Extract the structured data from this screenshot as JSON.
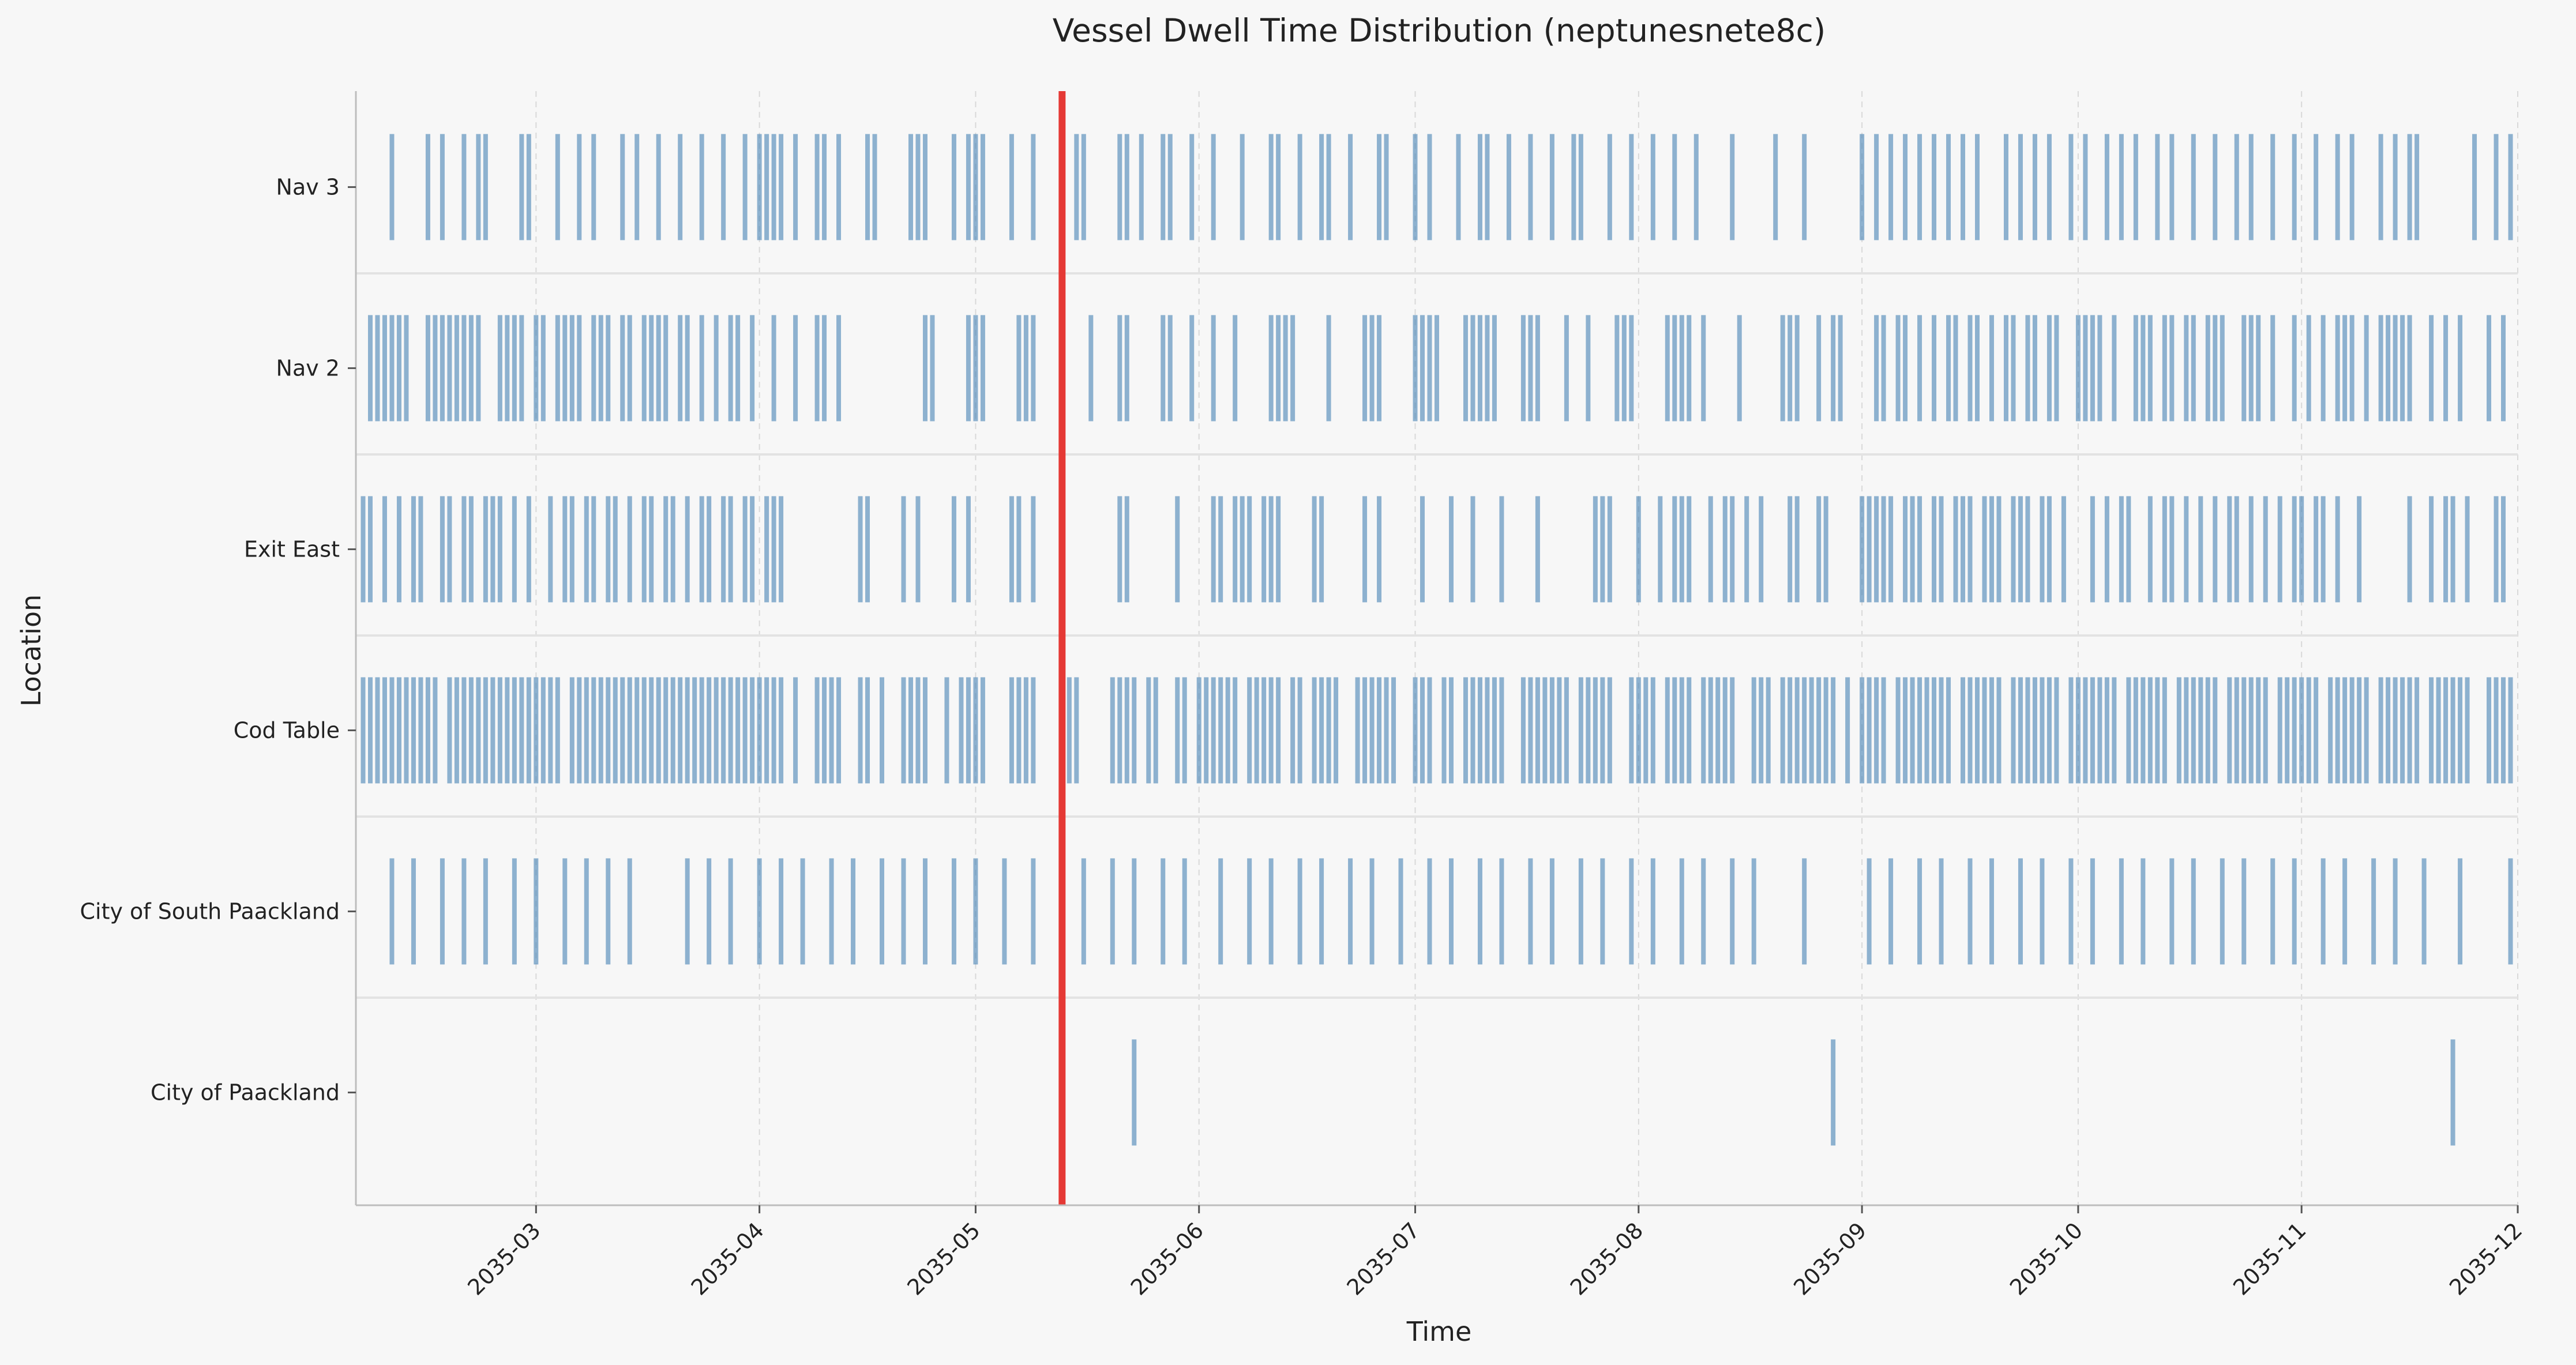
{
  "chart_data": {
    "type": "event-raster",
    "title": "Vessel Dwell Time Distribution (neptunesnete8c)",
    "xlabel": "Time",
    "ylabel": "Location",
    "x_axis": {
      "range": [
        "2035-02-04",
        "2035-12-01"
      ],
      "ticks": [
        "2035-03",
        "2035-04",
        "2035-05",
        "2035-06",
        "2035-07",
        "2035-08",
        "2035-09",
        "2035-10",
        "2035-11",
        "2035-12"
      ],
      "tick_dates": [
        "2035-03-01",
        "2035-04-01",
        "2035-05-01",
        "2035-06-01",
        "2035-07-01",
        "2035-08-01",
        "2035-09-01",
        "2035-10-01",
        "2035-11-01",
        "2035-12-01"
      ],
      "grid": "vertical dashed"
    },
    "categories": [
      "Nav 3",
      "Nav 2",
      "Exit East",
      "Cod Table",
      "City of South Paackland",
      "City of Paackland"
    ],
    "reference_line": {
      "date": "2035-05-13",
      "color": "#e53935"
    },
    "event_color": "#4682b4",
    "series": [
      {
        "category": "Nav 3",
        "event_dates": [
          "2035-02-09",
          "2035-02-14",
          "2035-02-16",
          "2035-02-19",
          "2035-02-21",
          "2035-02-22",
          "2035-02-27",
          "2035-02-28",
          "2035-03-04",
          "2035-03-07",
          "2035-03-09",
          "2035-03-13",
          "2035-03-15",
          "2035-03-18",
          "2035-03-21",
          "2035-03-24",
          "2035-03-27",
          "2035-03-30",
          "2035-04-01",
          "2035-04-02",
          "2035-04-03",
          "2035-04-04",
          "2035-04-06",
          "2035-04-09",
          "2035-04-10",
          "2035-04-12",
          "2035-04-16",
          "2035-04-17",
          "2035-04-22",
          "2035-04-23",
          "2035-04-24",
          "2035-04-28",
          "2035-04-30",
          "2035-05-01",
          "2035-05-02",
          "2035-05-06",
          "2035-05-09",
          "2035-05-15",
          "2035-05-16",
          "2035-05-21",
          "2035-05-22",
          "2035-05-24",
          "2035-05-27",
          "2035-05-28",
          "2035-05-31",
          "2035-06-03",
          "2035-06-07",
          "2035-06-11",
          "2035-06-12",
          "2035-06-15",
          "2035-06-18",
          "2035-06-19",
          "2035-06-22",
          "2035-06-26",
          "2035-06-27",
          "2035-07-01",
          "2035-07-03",
          "2035-07-07",
          "2035-07-10",
          "2035-07-11",
          "2035-07-14",
          "2035-07-17",
          "2035-07-20",
          "2035-07-23",
          "2035-07-24",
          "2035-07-28",
          "2035-07-31",
          "2035-08-03",
          "2035-08-06",
          "2035-08-09",
          "2035-08-14",
          "2035-08-20",
          "2035-08-24",
          "2035-09-01",
          "2035-09-03",
          "2035-09-05",
          "2035-09-07",
          "2035-09-09",
          "2035-09-11",
          "2035-09-13",
          "2035-09-15",
          "2035-09-17",
          "2035-09-21",
          "2035-09-23",
          "2035-09-25",
          "2035-09-27",
          "2035-09-30",
          "2035-10-02",
          "2035-10-05",
          "2035-10-07",
          "2035-10-09",
          "2035-10-12",
          "2035-10-14",
          "2035-10-17",
          "2035-10-20",
          "2035-10-23",
          "2035-10-25",
          "2035-10-28",
          "2035-10-31",
          "2035-11-03",
          "2035-11-06",
          "2035-11-08",
          "2035-11-12",
          "2035-11-14",
          "2035-11-16",
          "2035-11-17",
          "2035-11-25",
          "2035-11-28",
          "2035-11-30"
        ]
      },
      {
        "category": "Nav 2",
        "event_dates": [
          "2035-02-06",
          "2035-02-07",
          "2035-02-08",
          "2035-02-09",
          "2035-02-10",
          "2035-02-11",
          "2035-02-14",
          "2035-02-15",
          "2035-02-16",
          "2035-02-17",
          "2035-02-18",
          "2035-02-19",
          "2035-02-20",
          "2035-02-21",
          "2035-02-24",
          "2035-02-25",
          "2035-02-26",
          "2035-02-27",
          "2035-03-01",
          "2035-03-02",
          "2035-03-04",
          "2035-03-05",
          "2035-03-06",
          "2035-03-07",
          "2035-03-09",
          "2035-03-10",
          "2035-03-11",
          "2035-03-13",
          "2035-03-14",
          "2035-03-16",
          "2035-03-17",
          "2035-03-18",
          "2035-03-19",
          "2035-03-21",
          "2035-03-22",
          "2035-03-24",
          "2035-03-26",
          "2035-03-28",
          "2035-03-29",
          "2035-03-31",
          "2035-04-03",
          "2035-04-06",
          "2035-04-09",
          "2035-04-10",
          "2035-04-12",
          "2035-04-24",
          "2035-04-25",
          "2035-04-30",
          "2035-05-01",
          "2035-05-02",
          "2035-05-07",
          "2035-05-08",
          "2035-05-09",
          "2035-05-13",
          "2035-05-17",
          "2035-05-21",
          "2035-05-22",
          "2035-05-27",
          "2035-05-28",
          "2035-05-31",
          "2035-06-03",
          "2035-06-06",
          "2035-06-11",
          "2035-06-12",
          "2035-06-13",
          "2035-06-14",
          "2035-06-19",
          "2035-06-24",
          "2035-06-25",
          "2035-06-26",
          "2035-07-01",
          "2035-07-02",
          "2035-07-03",
          "2035-07-04",
          "2035-07-08",
          "2035-07-09",
          "2035-07-10",
          "2035-07-11",
          "2035-07-12",
          "2035-07-16",
          "2035-07-17",
          "2035-07-18",
          "2035-07-22",
          "2035-07-25",
          "2035-07-29",
          "2035-07-30",
          "2035-07-31",
          "2035-08-05",
          "2035-08-06",
          "2035-08-07",
          "2035-08-08",
          "2035-08-10",
          "2035-08-15",
          "2035-08-21",
          "2035-08-22",
          "2035-08-23",
          "2035-08-26",
          "2035-08-28",
          "2035-08-29",
          "2035-09-03",
          "2035-09-04",
          "2035-09-06",
          "2035-09-07",
          "2035-09-09",
          "2035-09-11",
          "2035-09-13",
          "2035-09-14",
          "2035-09-16",
          "2035-09-17",
          "2035-09-19",
          "2035-09-21",
          "2035-09-22",
          "2035-09-24",
          "2035-09-25",
          "2035-09-27",
          "2035-09-28",
          "2035-10-01",
          "2035-10-02",
          "2035-10-03",
          "2035-10-04",
          "2035-10-06",
          "2035-10-09",
          "2035-10-10",
          "2035-10-11",
          "2035-10-13",
          "2035-10-14",
          "2035-10-16",
          "2035-10-17",
          "2035-10-19",
          "2035-10-20",
          "2035-10-21",
          "2035-10-24",
          "2035-10-25",
          "2035-10-26",
          "2035-10-28",
          "2035-10-31",
          "2035-11-02",
          "2035-11-04",
          "2035-11-06",
          "2035-11-07",
          "2035-11-08",
          "2035-11-10",
          "2035-11-12",
          "2035-11-13",
          "2035-11-14",
          "2035-11-15",
          "2035-11-16",
          "2035-11-19",
          "2035-11-21",
          "2035-11-23",
          "2035-11-27",
          "2035-11-29"
        ]
      },
      {
        "category": "Exit East",
        "event_dates": [
          "2035-02-05",
          "2035-02-06",
          "2035-02-08",
          "2035-02-10",
          "2035-02-12",
          "2035-02-13",
          "2035-02-16",
          "2035-02-17",
          "2035-02-19",
          "2035-02-20",
          "2035-02-22",
          "2035-02-23",
          "2035-02-24",
          "2035-02-26",
          "2035-02-28",
          "2035-03-03",
          "2035-03-05",
          "2035-03-06",
          "2035-03-08",
          "2035-03-09",
          "2035-03-11",
          "2035-03-12",
          "2035-03-14",
          "2035-03-16",
          "2035-03-17",
          "2035-03-19",
          "2035-03-20",
          "2035-03-22",
          "2035-03-24",
          "2035-03-25",
          "2035-03-27",
          "2035-03-28",
          "2035-03-30",
          "2035-03-31",
          "2035-04-02",
          "2035-04-03",
          "2035-04-04",
          "2035-04-15",
          "2035-04-16",
          "2035-04-21",
          "2035-04-23",
          "2035-04-28",
          "2035-04-30",
          "2035-05-06",
          "2035-05-07",
          "2035-05-09",
          "2035-05-21",
          "2035-05-22",
          "2035-05-29",
          "2035-06-03",
          "2035-06-04",
          "2035-06-06",
          "2035-06-07",
          "2035-06-08",
          "2035-06-10",
          "2035-06-11",
          "2035-06-12",
          "2035-06-17",
          "2035-06-18",
          "2035-06-24",
          "2035-06-26",
          "2035-07-02",
          "2035-07-06",
          "2035-07-09",
          "2035-07-13",
          "2035-07-18",
          "2035-07-26",
          "2035-07-27",
          "2035-07-28",
          "2035-08-01",
          "2035-08-04",
          "2035-08-06",
          "2035-08-07",
          "2035-08-08",
          "2035-08-11",
          "2035-08-13",
          "2035-08-14",
          "2035-08-16",
          "2035-08-18",
          "2035-08-22",
          "2035-08-23",
          "2035-08-26",
          "2035-08-27",
          "2035-09-01",
          "2035-09-02",
          "2035-09-03",
          "2035-09-04",
          "2035-09-05",
          "2035-09-07",
          "2035-09-08",
          "2035-09-09",
          "2035-09-11",
          "2035-09-12",
          "2035-09-14",
          "2035-09-15",
          "2035-09-16",
          "2035-09-18",
          "2035-09-19",
          "2035-09-20",
          "2035-09-22",
          "2035-09-23",
          "2035-09-24",
          "2035-09-26",
          "2035-09-27",
          "2035-09-29",
          "2035-10-03",
          "2035-10-05",
          "2035-10-07",
          "2035-10-08",
          "2035-10-11",
          "2035-10-13",
          "2035-10-14",
          "2035-10-16",
          "2035-10-18",
          "2035-10-20",
          "2035-10-22",
          "2035-10-23",
          "2035-10-25",
          "2035-10-27",
          "2035-10-29",
          "2035-10-31",
          "2035-11-01",
          "2035-11-03",
          "2035-11-04",
          "2035-11-06",
          "2035-11-09",
          "2035-11-16",
          "2035-11-19",
          "2035-11-21",
          "2035-11-22",
          "2035-11-24",
          "2035-11-28",
          "2035-11-29"
        ]
      },
      {
        "category": "Cod Table",
        "event_dates": [
          "2035-02-05",
          "2035-02-06",
          "2035-02-07",
          "2035-02-08",
          "2035-02-09",
          "2035-02-10",
          "2035-02-11",
          "2035-02-12",
          "2035-02-13",
          "2035-02-14",
          "2035-02-15",
          "2035-02-17",
          "2035-02-18",
          "2035-02-19",
          "2035-02-20",
          "2035-02-21",
          "2035-02-22",
          "2035-02-23",
          "2035-02-24",
          "2035-02-25",
          "2035-02-26",
          "2035-02-27",
          "2035-02-28",
          "2035-03-01",
          "2035-03-02",
          "2035-03-03",
          "2035-03-04",
          "2035-03-06",
          "2035-03-07",
          "2035-03-08",
          "2035-03-09",
          "2035-03-10",
          "2035-03-11",
          "2035-03-12",
          "2035-03-13",
          "2035-03-14",
          "2035-03-15",
          "2035-03-16",
          "2035-03-17",
          "2035-03-18",
          "2035-03-19",
          "2035-03-20",
          "2035-03-21",
          "2035-03-22",
          "2035-03-23",
          "2035-03-24",
          "2035-03-25",
          "2035-03-26",
          "2035-03-27",
          "2035-03-28",
          "2035-03-29",
          "2035-03-30",
          "2035-03-31",
          "2035-04-01",
          "2035-04-02",
          "2035-04-03",
          "2035-04-04",
          "2035-04-06",
          "2035-04-09",
          "2035-04-10",
          "2035-04-11",
          "2035-04-12",
          "2035-04-15",
          "2035-04-16",
          "2035-04-18",
          "2035-04-21",
          "2035-04-22",
          "2035-04-23",
          "2035-04-24",
          "2035-04-27",
          "2035-04-29",
          "2035-04-30",
          "2035-05-01",
          "2035-05-02",
          "2035-05-06",
          "2035-05-07",
          "2035-05-08",
          "2035-05-09",
          "2035-05-13",
          "2035-05-14",
          "2035-05-15",
          "2035-05-20",
          "2035-05-21",
          "2035-05-22",
          "2035-05-23",
          "2035-05-25",
          "2035-05-26",
          "2035-05-29",
          "2035-05-30",
          "2035-06-01",
          "2035-06-02",
          "2035-06-03",
          "2035-06-04",
          "2035-06-05",
          "2035-06-06",
          "2035-06-08",
          "2035-06-09",
          "2035-06-10",
          "2035-06-11",
          "2035-06-12",
          "2035-06-14",
          "2035-06-15",
          "2035-06-17",
          "2035-06-18",
          "2035-06-19",
          "2035-06-20",
          "2035-06-23",
          "2035-06-24",
          "2035-06-25",
          "2035-06-26",
          "2035-06-27",
          "2035-06-28",
          "2035-07-01",
          "2035-07-02",
          "2035-07-03",
          "2035-07-05",
          "2035-07-06",
          "2035-07-08",
          "2035-07-09",
          "2035-07-10",
          "2035-07-11",
          "2035-07-12",
          "2035-07-13",
          "2035-07-16",
          "2035-07-17",
          "2035-07-18",
          "2035-07-19",
          "2035-07-20",
          "2035-07-21",
          "2035-07-22",
          "2035-07-24",
          "2035-07-25",
          "2035-07-26",
          "2035-07-27",
          "2035-07-28",
          "2035-07-31",
          "2035-08-01",
          "2035-08-02",
          "2035-08-03",
          "2035-08-05",
          "2035-08-06",
          "2035-08-07",
          "2035-08-08",
          "2035-08-10",
          "2035-08-11",
          "2035-08-12",
          "2035-08-13",
          "2035-08-14",
          "2035-08-17",
          "2035-08-18",
          "2035-08-19",
          "2035-08-21",
          "2035-08-22",
          "2035-08-23",
          "2035-08-24",
          "2035-08-25",
          "2035-08-26",
          "2035-08-27",
          "2035-08-28",
          "2035-08-30",
          "2035-09-01",
          "2035-09-02",
          "2035-09-03",
          "2035-09-04",
          "2035-09-06",
          "2035-09-07",
          "2035-09-08",
          "2035-09-09",
          "2035-09-10",
          "2035-09-11",
          "2035-09-12",
          "2035-09-13",
          "2035-09-15",
          "2035-09-16",
          "2035-09-17",
          "2035-09-18",
          "2035-09-19",
          "2035-09-20",
          "2035-09-22",
          "2035-09-23",
          "2035-09-24",
          "2035-09-25",
          "2035-09-26",
          "2035-09-27",
          "2035-09-28",
          "2035-09-30",
          "2035-10-01",
          "2035-10-02",
          "2035-10-03",
          "2035-10-04",
          "2035-10-05",
          "2035-10-06",
          "2035-10-08",
          "2035-10-09",
          "2035-10-10",
          "2035-10-11",
          "2035-10-12",
          "2035-10-13",
          "2035-10-15",
          "2035-10-16",
          "2035-10-17",
          "2035-10-18",
          "2035-10-19",
          "2035-10-20",
          "2035-10-22",
          "2035-10-23",
          "2035-10-24",
          "2035-10-25",
          "2035-10-26",
          "2035-10-27",
          "2035-10-29",
          "2035-10-30",
          "2035-10-31",
          "2035-11-01",
          "2035-11-02",
          "2035-11-03",
          "2035-11-05",
          "2035-11-06",
          "2035-11-07",
          "2035-11-08",
          "2035-11-09",
          "2035-11-10",
          "2035-11-12",
          "2035-11-13",
          "2035-11-14",
          "2035-11-15",
          "2035-11-16",
          "2035-11-17",
          "2035-11-19",
          "2035-11-20",
          "2035-11-21",
          "2035-11-22",
          "2035-11-23",
          "2035-11-24",
          "2035-11-27",
          "2035-11-28",
          "2035-11-29",
          "2035-11-30"
        ]
      },
      {
        "category": "City of South Paackland",
        "event_dates": [
          "2035-02-09",
          "2035-02-12",
          "2035-02-16",
          "2035-02-19",
          "2035-02-22",
          "2035-02-26",
          "2035-03-01",
          "2035-03-05",
          "2035-03-08",
          "2035-03-11",
          "2035-03-14",
          "2035-03-22",
          "2035-03-25",
          "2035-03-28",
          "2035-04-01",
          "2035-04-04",
          "2035-04-07",
          "2035-04-11",
          "2035-04-14",
          "2035-04-18",
          "2035-04-21",
          "2035-04-24",
          "2035-04-28",
          "2035-05-01",
          "2035-05-05",
          "2035-05-09",
          "2035-05-13",
          "2035-05-16",
          "2035-05-20",
          "2035-05-23",
          "2035-05-27",
          "2035-05-30",
          "2035-06-04",
          "2035-06-08",
          "2035-06-11",
          "2035-06-15",
          "2035-06-18",
          "2035-06-22",
          "2035-06-25",
          "2035-06-29",
          "2035-07-03",
          "2035-07-06",
          "2035-07-10",
          "2035-07-13",
          "2035-07-17",
          "2035-07-20",
          "2035-07-24",
          "2035-07-27",
          "2035-07-31",
          "2035-08-03",
          "2035-08-07",
          "2035-08-10",
          "2035-08-14",
          "2035-08-17",
          "2035-08-24",
          "2035-09-02",
          "2035-09-05",
          "2035-09-09",
          "2035-09-12",
          "2035-09-16",
          "2035-09-19",
          "2035-09-23",
          "2035-09-26",
          "2035-09-30",
          "2035-10-03",
          "2035-10-07",
          "2035-10-10",
          "2035-10-14",
          "2035-10-17",
          "2035-10-21",
          "2035-10-24",
          "2035-10-28",
          "2035-10-31",
          "2035-11-04",
          "2035-11-07",
          "2035-11-11",
          "2035-11-14",
          "2035-11-18",
          "2035-11-23",
          "2035-11-30"
        ]
      },
      {
        "category": "City of Paackland",
        "event_dates": [
          "2035-05-23",
          "2035-08-28",
          "2035-11-22"
        ]
      }
    ]
  }
}
